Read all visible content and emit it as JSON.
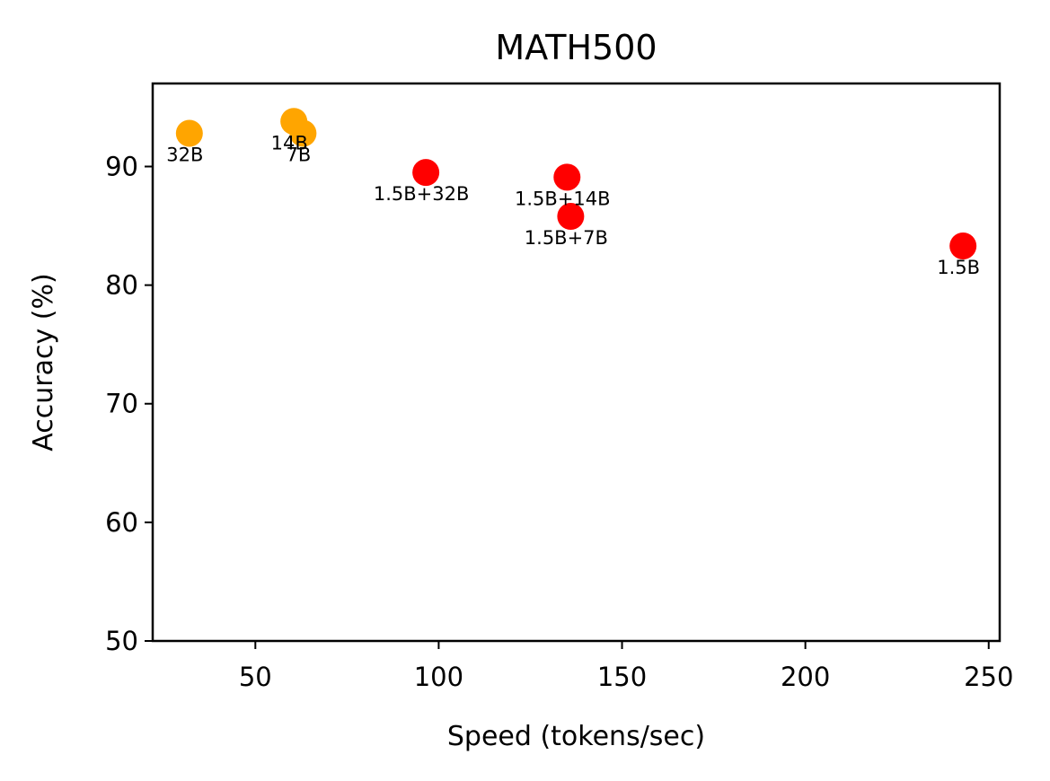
{
  "chart_data": {
    "type": "scatter",
    "title": "MATH500",
    "xlabel": "Speed (tokens/sec)",
    "ylabel": "Accuracy (%)",
    "xlim": [
      22,
      253
    ],
    "ylim": [
      50,
      97
    ],
    "xticks": [
      50,
      100,
      150,
      200,
      250
    ],
    "yticks": [
      50,
      60,
      70,
      80,
      90
    ],
    "grid": false,
    "points": [
      {
        "label": "32B",
        "x": 32,
        "y": 92.8,
        "color": "#FFA500"
      },
      {
        "label": "14B",
        "x": 60.5,
        "y": 93.8,
        "color": "#FFA500"
      },
      {
        "label": "7B",
        "x": 63,
        "y": 92.8,
        "color": "#FFA500"
      },
      {
        "label": "1.5B+32B",
        "x": 96.5,
        "y": 89.5,
        "color": "#FF0000"
      },
      {
        "label": "1.5B+14B",
        "x": 135,
        "y": 89.1,
        "color": "#FF0000"
      },
      {
        "label": "1.5B+7B",
        "x": 136,
        "y": 85.8,
        "color": "#FF0000"
      },
      {
        "label": "1.5B",
        "x": 243,
        "y": 83.3,
        "color": "#FF0000"
      }
    ]
  }
}
